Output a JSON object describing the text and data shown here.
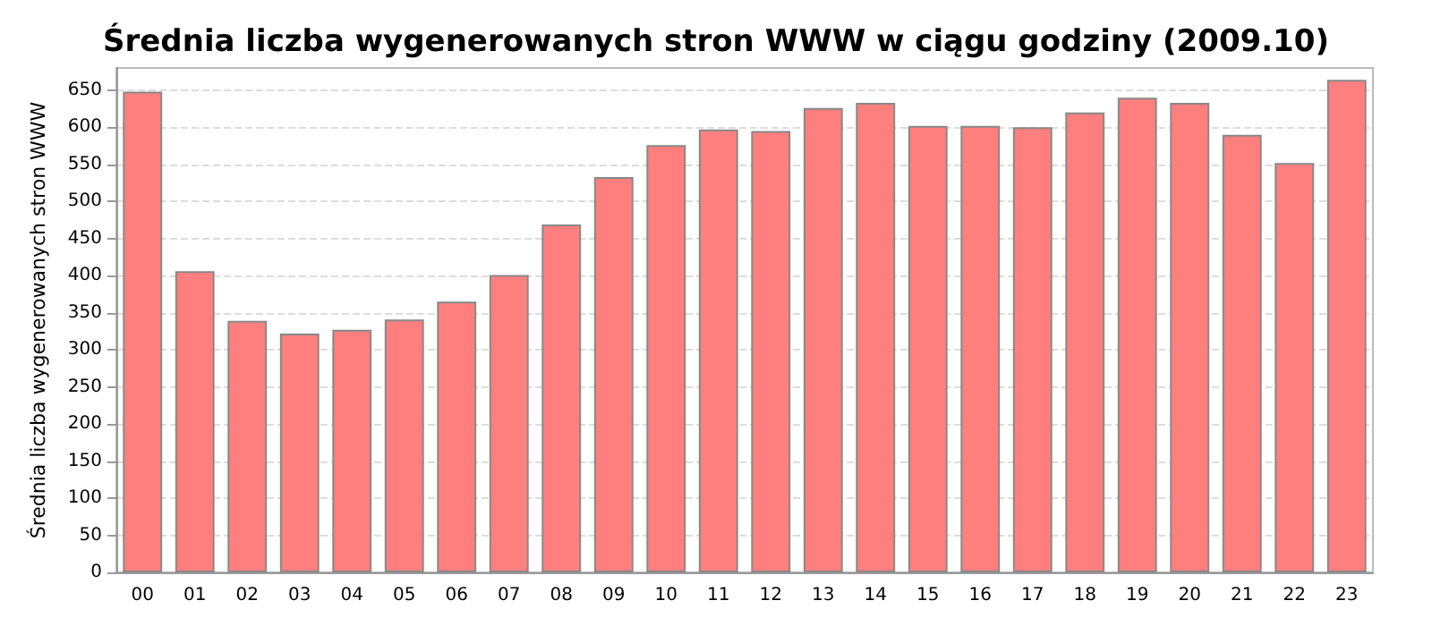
{
  "chart_data": {
    "type": "bar",
    "title": "Średnia liczba wygenerowanych stron WWW w ciągu godziny (2009.10)",
    "ylabel": "Średnia liczba wygenerowanych stron WWW",
    "categories": [
      "00",
      "01",
      "02",
      "03",
      "04",
      "05",
      "06",
      "07",
      "08",
      "09",
      "10",
      "11",
      "12",
      "13",
      "14",
      "15",
      "16",
      "17",
      "18",
      "19",
      "20",
      "21",
      "22",
      "23"
    ],
    "values": [
      648,
      406,
      339,
      322,
      327,
      341,
      365,
      401,
      469,
      533,
      576,
      597,
      595,
      626,
      633,
      602,
      602,
      600,
      620,
      640,
      633,
      590,
      552,
      664
    ],
    "color": "#ff7f7f",
    "ylim": [
      0,
      680
    ],
    "yticks": [
      0,
      50,
      100,
      150,
      200,
      250,
      300,
      350,
      400,
      450,
      500,
      550,
      600,
      650
    ],
    "grid": "y"
  }
}
